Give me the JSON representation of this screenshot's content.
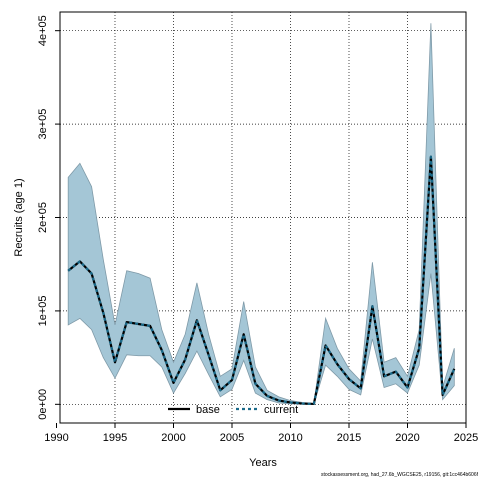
{
  "chart_data": {
    "type": "line",
    "xlabel": "Years",
    "ylabel": "Recruits (age 1)",
    "xlim": [
      1990.3,
      2025.0
    ],
    "ylim": [
      -20000,
      420000
    ],
    "x_ticks": [
      1990,
      1995,
      2000,
      2005,
      2010,
      2015,
      2020,
      2025
    ],
    "x_tick_labels": [
      "1990",
      "1995",
      "2000",
      "2005",
      "2010",
      "2015",
      "2020",
      "2025"
    ],
    "y_ticks": [
      0,
      100000,
      200000,
      300000,
      400000
    ],
    "y_tick_labels": [
      "0e+00",
      "1e+05",
      "2e+05",
      "3e+05",
      "4e+05"
    ],
    "grid": true,
    "legend_position": "bottom",
    "interval_color": "#a4c6d6",
    "interval_edge_color": "#7f9aa8",
    "x": [
      1991,
      1992,
      1993,
      1994,
      1995,
      1996,
      1997,
      1998,
      1999,
      2000,
      2001,
      2002,
      2003,
      2004,
      2005,
      2006,
      2007,
      2008,
      2009,
      2010,
      2011,
      2012,
      2013,
      2014,
      2015,
      2016,
      2017,
      2018,
      2019,
      2020,
      2021,
      2022,
      2023,
      2024
    ],
    "interval": {
      "upper": [
        243000,
        258000,
        233000,
        155000,
        85000,
        143000,
        140000,
        135000,
        80000,
        45000,
        75000,
        130000,
        75000,
        30000,
        38000,
        110000,
        40000,
        15000,
        8000,
        4000,
        2000,
        1000,
        92000,
        60000,
        38000,
        25000,
        152000,
        45000,
        50000,
        30000,
        80000,
        408000,
        18000,
        60000
      ],
      "lower": [
        85000,
        92000,
        80000,
        50000,
        28000,
        53000,
        52000,
        52000,
        40000,
        12000,
        33000,
        57000,
        32000,
        8000,
        16000,
        47000,
        12000,
        5000,
        1500,
        500,
        300,
        100,
        42000,
        30000,
        16000,
        10000,
        70000,
        18000,
        22000,
        12000,
        42000,
        140000,
        5000,
        20000
      ]
    },
    "series": [
      {
        "name": "base",
        "color": "#000000",
        "values": [
          143000,
          153000,
          140000,
          98000,
          45000,
          88000,
          86000,
          84000,
          58000,
          23000,
          48000,
          90000,
          53000,
          15000,
          26000,
          75000,
          22000,
          9000,
          4000,
          2000,
          800,
          400,
          63000,
          43000,
          27000,
          17000,
          105000,
          30000,
          35000,
          18000,
          60000,
          265000,
          10000,
          38000
        ]
      },
      {
        "name": "current",
        "color": "#1a6a8a",
        "values": [
          143000,
          153000,
          140000,
          98000,
          45000,
          88000,
          86000,
          84000,
          58000,
          23000,
          48000,
          90000,
          53000,
          15000,
          26000,
          75000,
          22000,
          9000,
          4000,
          2000,
          800,
          400,
          63000,
          43000,
          27000,
          17000,
          105000,
          30000,
          35000,
          18000,
          60000,
          265000,
          10000,
          38000
        ]
      }
    ]
  },
  "footer_text": "stockassessment.org, had_27.6b_WGCSE25, r19156, git:1cc464b606f"
}
